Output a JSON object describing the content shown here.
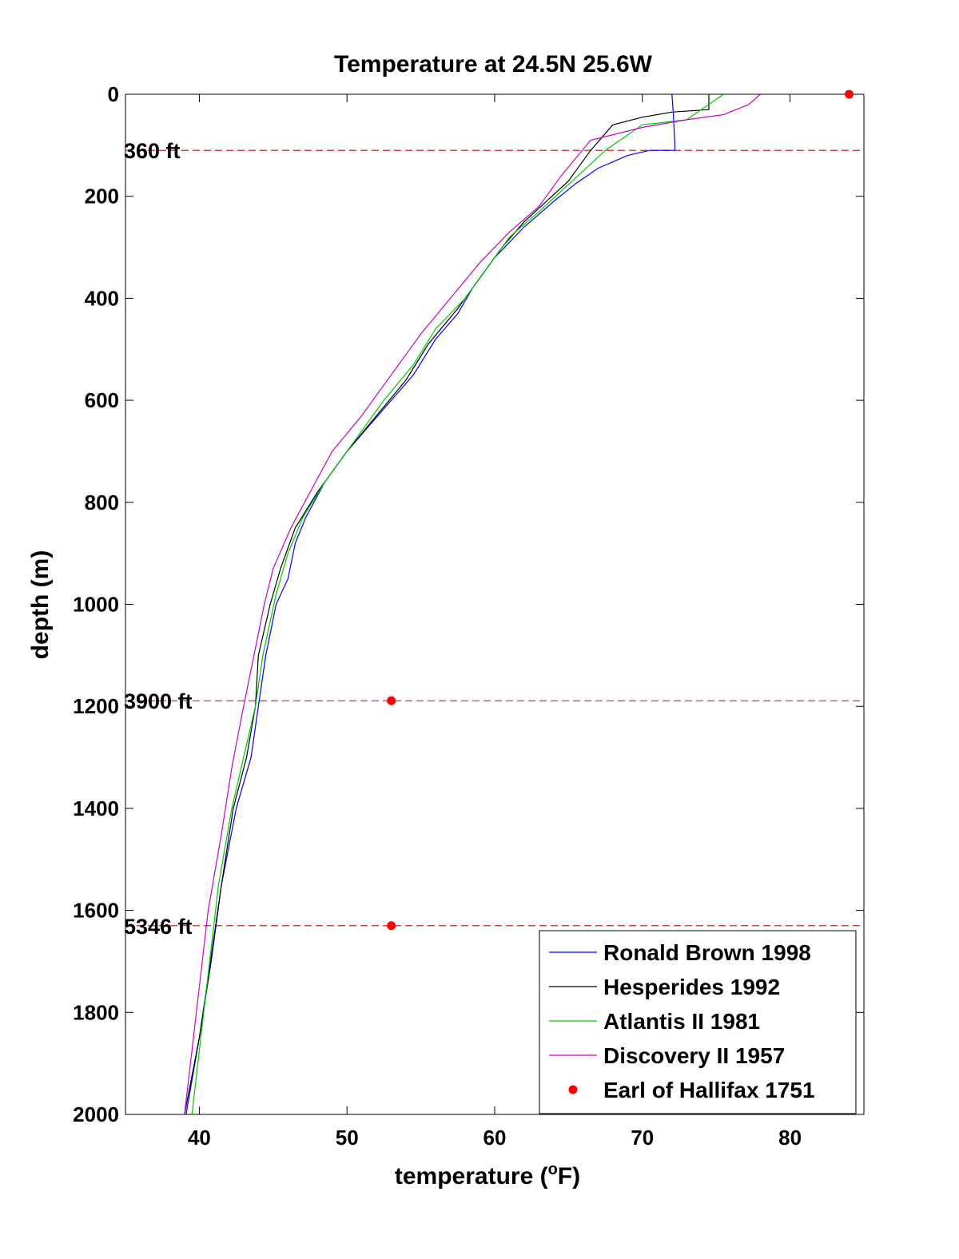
{
  "chart_data": {
    "type": "line",
    "title": "Temperature at 24.5N 25.6W",
    "xlabel": "temperature (°F)",
    "xlabel_parts": {
      "pre": "temperature (",
      "sup": "o",
      "post": "F)"
    },
    "ylabel": "depth (m)",
    "xlim": [
      35,
      85
    ],
    "ylim": [
      0,
      2000
    ],
    "y_reversed": true,
    "xticks": [
      40,
      50,
      60,
      70,
      80
    ],
    "yticks": [
      0,
      200,
      400,
      600,
      800,
      1000,
      1200,
      1400,
      1600,
      1800,
      2000
    ],
    "grid": false,
    "legend_position": "bottom-right",
    "series": [
      {
        "name": "Ronald Brown 1998",
        "color": "#0000ff",
        "points": [
          [
            72,
            0
          ],
          [
            72.1,
            40
          ],
          [
            72.2,
            100
          ],
          [
            72.2,
            110
          ],
          [
            70.5,
            110
          ],
          [
            69,
            120
          ],
          [
            67,
            145
          ],
          [
            65.5,
            175
          ],
          [
            64,
            210
          ],
          [
            62,
            260
          ],
          [
            60,
            320
          ],
          [
            58.5,
            380
          ],
          [
            57.5,
            430
          ],
          [
            56,
            480
          ],
          [
            54.5,
            550
          ],
          [
            53,
            600
          ],
          [
            51.5,
            650
          ],
          [
            50,
            700
          ],
          [
            48.5,
            760
          ],
          [
            47.2,
            830
          ],
          [
            46.5,
            880
          ],
          [
            46,
            950
          ],
          [
            45.2,
            1000
          ],
          [
            44.5,
            1100
          ],
          [
            44,
            1200
          ],
          [
            43.5,
            1300
          ],
          [
            42.5,
            1400
          ],
          [
            41.5,
            1550
          ],
          [
            41,
            1650
          ],
          [
            40,
            1850
          ],
          [
            39.1,
            2000
          ]
        ]
      },
      {
        "name": "Hesperides 1992",
        "color": "#000000",
        "points": [
          [
            74.5,
            0
          ],
          [
            74.5,
            30
          ],
          [
            72,
            35
          ],
          [
            70,
            45
          ],
          [
            68,
            60
          ],
          [
            66.5,
            110
          ],
          [
            65,
            170
          ],
          [
            63.5,
            210
          ],
          [
            62,
            250
          ],
          [
            60.5,
            300
          ],
          [
            59,
            360
          ],
          [
            57.5,
            420
          ],
          [
            55.5,
            490
          ],
          [
            54,
            560
          ],
          [
            52,
            630
          ],
          [
            50,
            700
          ],
          [
            48,
            780
          ],
          [
            46.5,
            850
          ],
          [
            45.5,
            930
          ],
          [
            44.8,
            1000
          ],
          [
            44,
            1100
          ],
          [
            43.8,
            1200
          ],
          [
            43.2,
            1300
          ],
          [
            42.3,
            1400
          ],
          [
            41.5,
            1550
          ],
          [
            40.8,
            1700
          ],
          [
            40,
            1850
          ],
          [
            39,
            2000
          ]
        ]
      },
      {
        "name": "Atlantis II 1981",
        "color": "#00c800",
        "points": [
          [
            75.5,
            0
          ],
          [
            74.5,
            20
          ],
          [
            73,
            50
          ],
          [
            70,
            60
          ],
          [
            67.5,
            110
          ],
          [
            66,
            150
          ],
          [
            64.5,
            190
          ],
          [
            63,
            230
          ],
          [
            61,
            280
          ],
          [
            59.5,
            340
          ],
          [
            58,
            400
          ],
          [
            56,
            460
          ],
          [
            54.5,
            530
          ],
          [
            52.5,
            600
          ],
          [
            50.5,
            680
          ],
          [
            48.5,
            760
          ],
          [
            47,
            830
          ],
          [
            46,
            900
          ],
          [
            45.2,
            980
          ],
          [
            44.3,
            1100
          ],
          [
            43.8,
            1200
          ],
          [
            43,
            1300
          ],
          [
            42.2,
            1400
          ],
          [
            41.3,
            1550
          ],
          [
            40.5,
            1750
          ],
          [
            39.5,
            2000
          ]
        ]
      },
      {
        "name": "Discovery II 1957",
        "color": "#c800c8",
        "points": [
          [
            78,
            0
          ],
          [
            77.2,
            20
          ],
          [
            75.5,
            40
          ],
          [
            73,
            50
          ],
          [
            70,
            65
          ],
          [
            66.5,
            90
          ],
          [
            64.5,
            160
          ],
          [
            63,
            220
          ],
          [
            61,
            270
          ],
          [
            59,
            330
          ],
          [
            57,
            400
          ],
          [
            55,
            470
          ],
          [
            53,
            550
          ],
          [
            51,
            630
          ],
          [
            49,
            700
          ],
          [
            47.5,
            780
          ],
          [
            46.2,
            850
          ],
          [
            45,
            930
          ],
          [
            44.4,
            1000
          ],
          [
            43.7,
            1100
          ],
          [
            43,
            1200
          ],
          [
            42.2,
            1320
          ],
          [
            41.5,
            1450
          ],
          [
            40.6,
            1600
          ],
          [
            39.8,
            1800
          ],
          [
            39,
            2000
          ]
        ]
      }
    ],
    "points_series": {
      "name": "Earl of Hallifax 1751",
      "color": "#ff0000",
      "points": [
        [
          84,
          0
        ],
        [
          53,
          1189
        ],
        [
          53,
          1630
        ]
      ]
    },
    "reference_lines": [
      {
        "depth": 110,
        "label": "360 ft"
      },
      {
        "depth": 1189,
        "label": "3900 ft"
      },
      {
        "depth": 1630,
        "label": "5346 ft"
      }
    ]
  }
}
